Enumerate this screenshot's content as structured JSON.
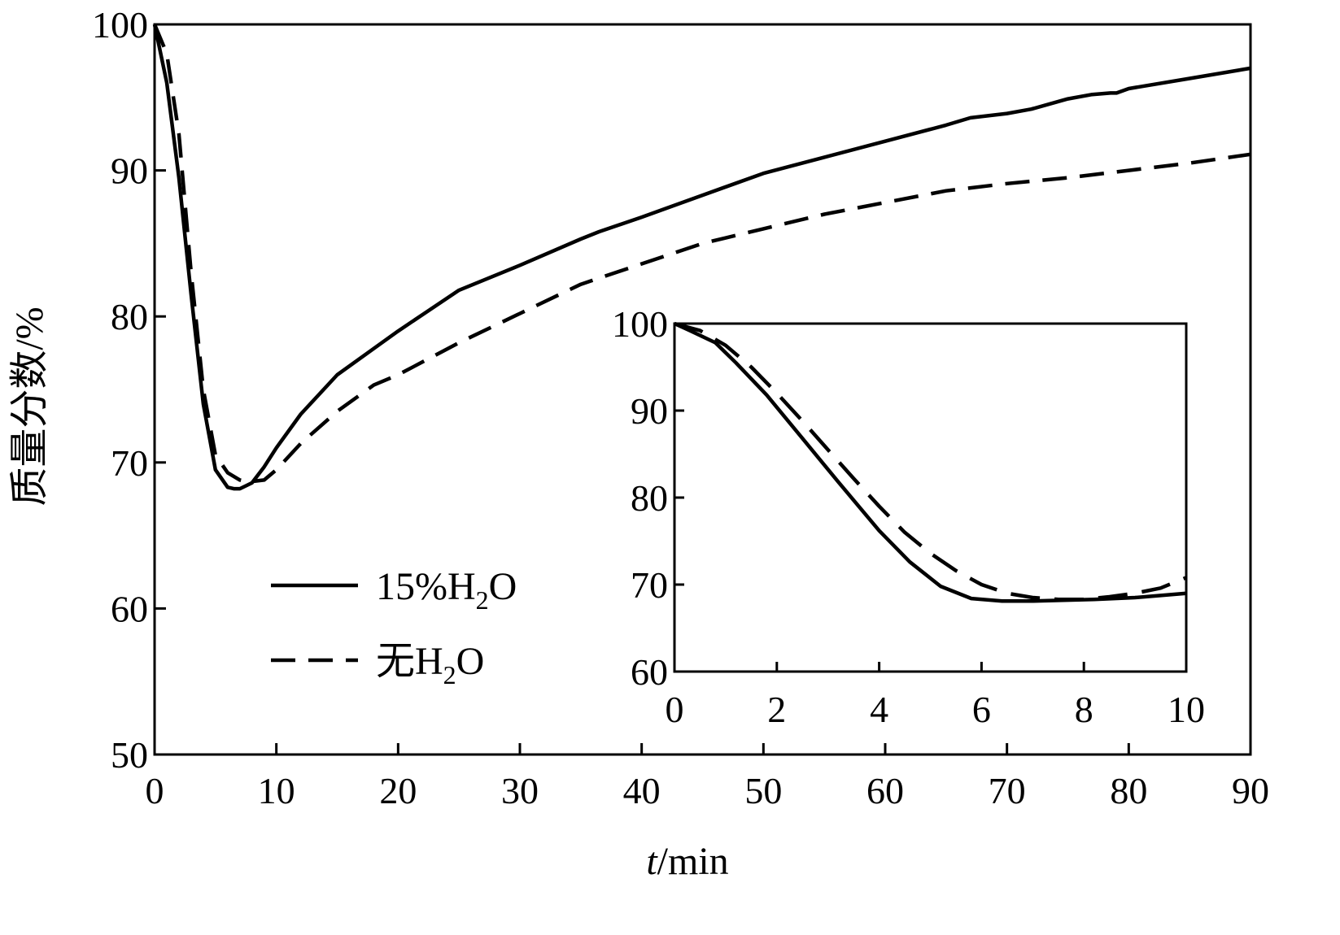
{
  "chart_data": [
    {
      "type": "line",
      "name": "main",
      "xlabel_italic": "t",
      "xlabel_rest": "/min",
      "ylabel": "质量分数/%",
      "xlim": [
        0,
        90
      ],
      "ylim": [
        50,
        100
      ],
      "xticks": [
        0,
        10,
        20,
        30,
        40,
        50,
        60,
        70,
        80,
        90
      ],
      "yticks": [
        50,
        60,
        70,
        80,
        90,
        100
      ],
      "legend_position": "lower-left",
      "series": [
        {
          "name": "15%H2O",
          "label_prefix": "15%H",
          "label_sub": "2",
          "label_suffix": "O",
          "style": "solid",
          "x": [
            0,
            1,
            2,
            3,
            4,
            5,
            6,
            6.5,
            7,
            7.5,
            8,
            9,
            10,
            12,
            15,
            18,
            20,
            25,
            30,
            35,
            36.5,
            40,
            45,
            50,
            55,
            60,
            65,
            67,
            70,
            72,
            75,
            77,
            78.5,
            79,
            80,
            85,
            90
          ],
          "y": [
            100,
            96,
            89.5,
            81.5,
            74,
            69.5,
            68.3,
            68.2,
            68.2,
            68.4,
            68.6,
            69.7,
            71,
            73.3,
            76,
            77.8,
            79,
            81.8,
            83.5,
            85.3,
            85.8,
            86.8,
            88.3,
            89.8,
            90.9,
            92.0,
            93.1,
            93.6,
            93.9,
            94.2,
            94.9,
            95.2,
            95.3,
            95.3,
            95.6,
            96.3,
            97
          ]
        },
        {
          "name": "无H2O",
          "label_prefix": "无H",
          "label_sub": "2",
          "label_suffix": "O",
          "style": "dashed",
          "x": [
            0,
            1,
            2,
            3,
            4,
            5,
            6,
            7,
            7.5,
            8,
            9,
            10,
            12,
            15,
            18,
            20,
            25,
            30,
            35,
            40,
            45,
            50,
            55,
            60,
            65,
            66,
            70,
            75,
            80,
            85,
            90
          ],
          "y": [
            100,
            98,
            92.5,
            83,
            75,
            70.5,
            69.3,
            68.8,
            68.7,
            68.7,
            68.8,
            69.5,
            71.3,
            73.5,
            75.3,
            76,
            78.2,
            80.2,
            82.2,
            83.6,
            85,
            86,
            87,
            87.8,
            88.6,
            88.7,
            89.1,
            89.5,
            90,
            90.5,
            91.1
          ]
        }
      ]
    },
    {
      "type": "line",
      "name": "inset",
      "xlim": [
        0,
        10
      ],
      "ylim": [
        60,
        100
      ],
      "xticks": [
        0,
        2,
        4,
        6,
        8,
        10
      ],
      "yticks": [
        60,
        70,
        80,
        90,
        100
      ],
      "series": [
        {
          "name": "15%H2O",
          "style": "solid",
          "x": [
            0,
            0.3,
            0.8,
            1.2,
            1.8,
            2.5,
            3.2,
            4.0,
            4.6,
            5.2,
            5.8,
            6.4,
            7.0,
            7.6,
            8.2,
            9.0,
            10
          ],
          "y": [
            100,
            99.2,
            97.8,
            95.5,
            91.8,
            86.8,
            81.8,
            76.2,
            72.6,
            69.8,
            68.4,
            68.1,
            68.1,
            68.2,
            68.3,
            68.5,
            69
          ]
        },
        {
          "name": "无H2O",
          "style": "dashed",
          "x": [
            0,
            0.5,
            1.0,
            1.5,
            2.0,
            2.5,
            3.0,
            3.5,
            4.0,
            4.5,
            5.0,
            5.5,
            6.0,
            6.5,
            7.0,
            7.5,
            8.0,
            8.5,
            9.0,
            9.5,
            10
          ],
          "y": [
            100,
            99.2,
            97.5,
            95.0,
            92.0,
            88.8,
            85.5,
            82.2,
            79.0,
            76.0,
            73.6,
            71.6,
            70.0,
            69.0,
            68.5,
            68.3,
            68.3,
            68.6,
            69.0,
            69.6,
            70.8
          ]
        }
      ]
    }
  ]
}
